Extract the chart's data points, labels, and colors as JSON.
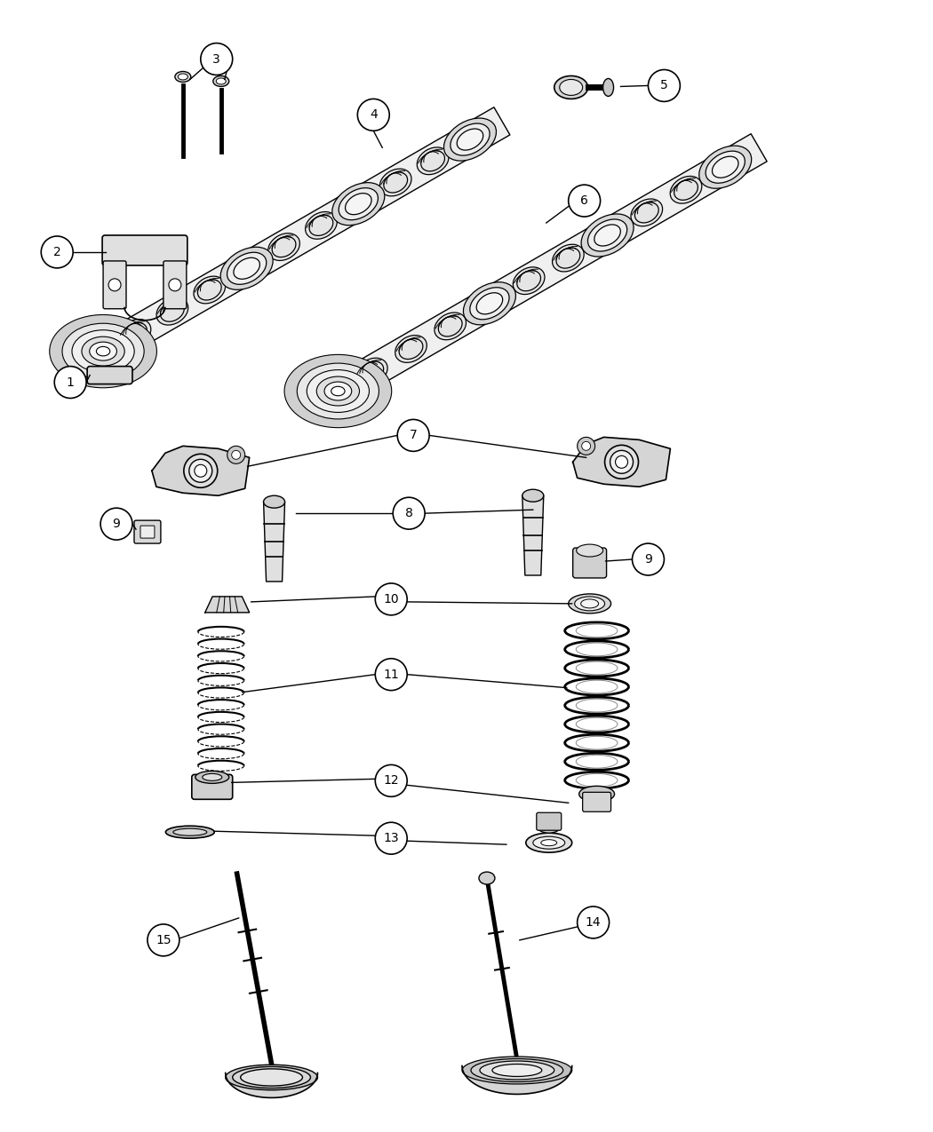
{
  "background_color": "#ffffff",
  "line_color": "#000000",
  "fig_width": 10.5,
  "fig_height": 12.75,
  "dpi": 100
}
